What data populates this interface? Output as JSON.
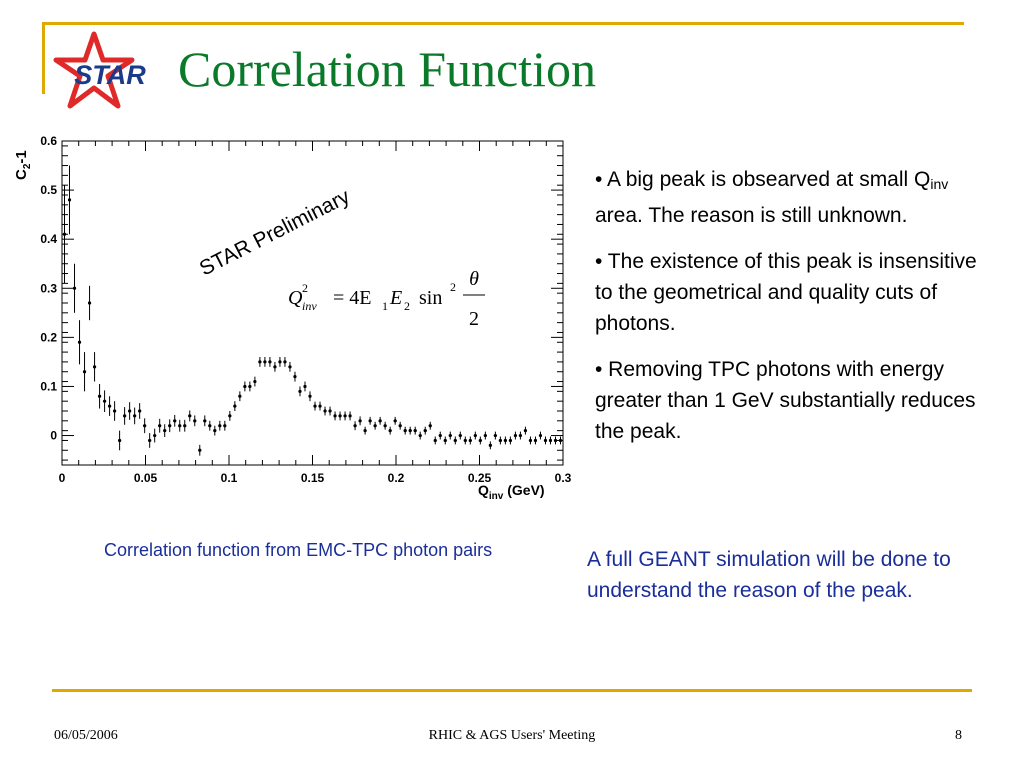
{
  "slide": {
    "title": "Correlation Function",
    "logo_text": "STAR",
    "accent_color": "#e0a800",
    "title_color": "#0a7a2a",
    "logo_star_color": "#e02a2a",
    "logo_text_color": "#1a3a8a"
  },
  "bullets": [
    {
      "prefix": "• A big peak is obsearved at small Q",
      "sub": "inv",
      "suffix": " area. The reason is still unknown."
    },
    {
      "text": "• The existence of this peak is insensitive to the geometrical and quality cuts of photons."
    },
    {
      "text": "• Removing TPC photons with energy greater than 1 GeV substantially reduces the peak."
    }
  ],
  "caption": "Correlation function from EMC-TPC photon pairs",
  "note": "A full GEANT simulation will be done to understand the reason of the peak.",
  "footer": {
    "date": "06/05/2006",
    "meeting": "RHIC & AGS Users' Meeting",
    "page": "8"
  },
  "chart_data": {
    "type": "scatter",
    "title": "",
    "xlabel": "Q",
    "xlabel_sub": "inv",
    "xlabel_unit": " (GeV)",
    "ylabel": "C",
    "ylabel_sub": "2",
    "ylabel_suffix": "-1",
    "xlim": [
      0,
      0.3
    ],
    "ylim": [
      -0.06,
      0.6
    ],
    "xticks": [
      0,
      0.05,
      0.1,
      0.15,
      0.2,
      0.25,
      0.3
    ],
    "xtick_labels": [
      "0",
      "0.05",
      "0.1",
      "0.15",
      "0.2",
      "0.25",
      "0.3"
    ],
    "yticks": [
      0,
      0.1,
      0.2,
      0.3,
      0.4,
      0.5,
      0.6
    ],
    "ytick_labels": [
      "0",
      "0.1",
      "0.2",
      "0.3",
      "0.4",
      "0.5",
      "0.6"
    ],
    "grid": false,
    "annotation": "STAR Preliminary",
    "formula": {
      "lhs": "Q",
      "lhs_sup": "2",
      "lhs_sub": "inv",
      "eq": "= 4E",
      "e1_sub": "1",
      "e2": "E",
      "e2_sub": "2",
      "sin": "sin",
      "sin_sup": "2",
      "num": "θ",
      "den": "2"
    },
    "series": [
      {
        "x": [
          0.0015,
          0.0045,
          0.0075,
          0.0105,
          0.0135,
          0.0165,
          0.0195,
          0.0225,
          0.0255,
          0.0285,
          0.0315,
          0.0345,
          0.0375,
          0.0405,
          0.0435,
          0.0465,
          0.0495,
          0.0525,
          0.0555,
          0.0585,
          0.0615,
          0.0645,
          0.0675,
          0.0705,
          0.0735,
          0.0765,
          0.0795,
          0.0825,
          0.0855,
          0.0885,
          0.0915,
          0.0945,
          0.0975,
          0.1005,
          0.1035,
          0.1065,
          0.1095,
          0.1125,
          0.1155,
          0.1185,
          0.1215,
          0.1245,
          0.1275,
          0.1305,
          0.1335,
          0.1365,
          0.1395,
          0.1425,
          0.1455,
          0.1485,
          0.1515,
          0.1545,
          0.1575,
          0.1605,
          0.1635,
          0.1665,
          0.1695,
          0.1725,
          0.1755,
          0.1785,
          0.1815,
          0.1845,
          0.1875,
          0.1905,
          0.1935,
          0.1965,
          0.1995,
          0.2025,
          0.2055,
          0.2085,
          0.2115,
          0.2145,
          0.2175,
          0.2205,
          0.2235,
          0.2265,
          0.2295,
          0.2325,
          0.2355,
          0.2385,
          0.2415,
          0.2445,
          0.2475,
          0.2505,
          0.2535,
          0.2565,
          0.2595,
          0.2625,
          0.2655,
          0.2685,
          0.2715,
          0.2745,
          0.2775,
          0.2805,
          0.2835,
          0.2865,
          0.2895,
          0.2925,
          0.2955,
          0.2985
        ],
        "y": [
          0.41,
          0.48,
          0.3,
          0.19,
          0.13,
          0.27,
          0.14,
          0.08,
          0.07,
          0.06,
          0.05,
          -0.01,
          0.04,
          0.05,
          0.04,
          0.05,
          0.02,
          -0.01,
          0.0,
          0.02,
          0.01,
          0.02,
          0.03,
          0.02,
          0.02,
          0.04,
          0.03,
          -0.03,
          0.03,
          0.02,
          0.01,
          0.02,
          0.02,
          0.04,
          0.06,
          0.08,
          0.1,
          0.1,
          0.11,
          0.15,
          0.15,
          0.15,
          0.14,
          0.15,
          0.15,
          0.14,
          0.12,
          0.09,
          0.1,
          0.08,
          0.06,
          0.06,
          0.05,
          0.05,
          0.04,
          0.04,
          0.04,
          0.04,
          0.02,
          0.03,
          0.01,
          0.03,
          0.02,
          0.03,
          0.02,
          0.01,
          0.03,
          0.02,
          0.01,
          0.01,
          0.01,
          0.0,
          0.01,
          0.02,
          -0.01,
          0.0,
          -0.01,
          0.0,
          -0.01,
          0.0,
          -0.01,
          -0.01,
          0.0,
          -0.01,
          0.0,
          -0.02,
          0.0,
          -0.01,
          -0.01,
          -0.01,
          0.0,
          0.0,
          0.01,
          -0.01,
          -0.01,
          0.0,
          -0.01,
          -0.01,
          -0.01,
          -0.01
        ],
        "err": [
          0.1,
          0.07,
          0.05,
          0.045,
          0.04,
          0.035,
          0.03,
          0.025,
          0.022,
          0.02,
          0.02,
          0.02,
          0.018,
          0.018,
          0.017,
          0.016,
          0.015,
          0.015,
          0.014,
          0.014,
          0.013,
          0.013,
          0.012,
          0.012,
          0.012,
          0.011,
          0.011,
          0.011,
          0.011,
          0.01,
          0.01,
          0.01,
          0.01,
          0.01,
          0.01,
          0.01,
          0.01,
          0.01,
          0.01,
          0.01,
          0.01,
          0.01,
          0.01,
          0.01,
          0.01,
          0.01,
          0.01,
          0.01,
          0.01,
          0.01,
          0.009,
          0.009,
          0.009,
          0.009,
          0.009,
          0.009,
          0.009,
          0.009,
          0.009,
          0.009,
          0.008,
          0.008,
          0.008,
          0.008,
          0.008,
          0.008,
          0.008,
          0.008,
          0.008,
          0.008,
          0.008,
          0.008,
          0.008,
          0.008,
          0.008,
          0.008,
          0.008,
          0.008,
          0.008,
          0.008,
          0.008,
          0.008,
          0.008,
          0.008,
          0.008,
          0.008,
          0.008,
          0.008,
          0.008,
          0.008,
          0.008,
          0.008,
          0.008,
          0.008,
          0.008,
          0.008,
          0.008,
          0.008,
          0.008,
          0.008
        ]
      }
    ]
  }
}
